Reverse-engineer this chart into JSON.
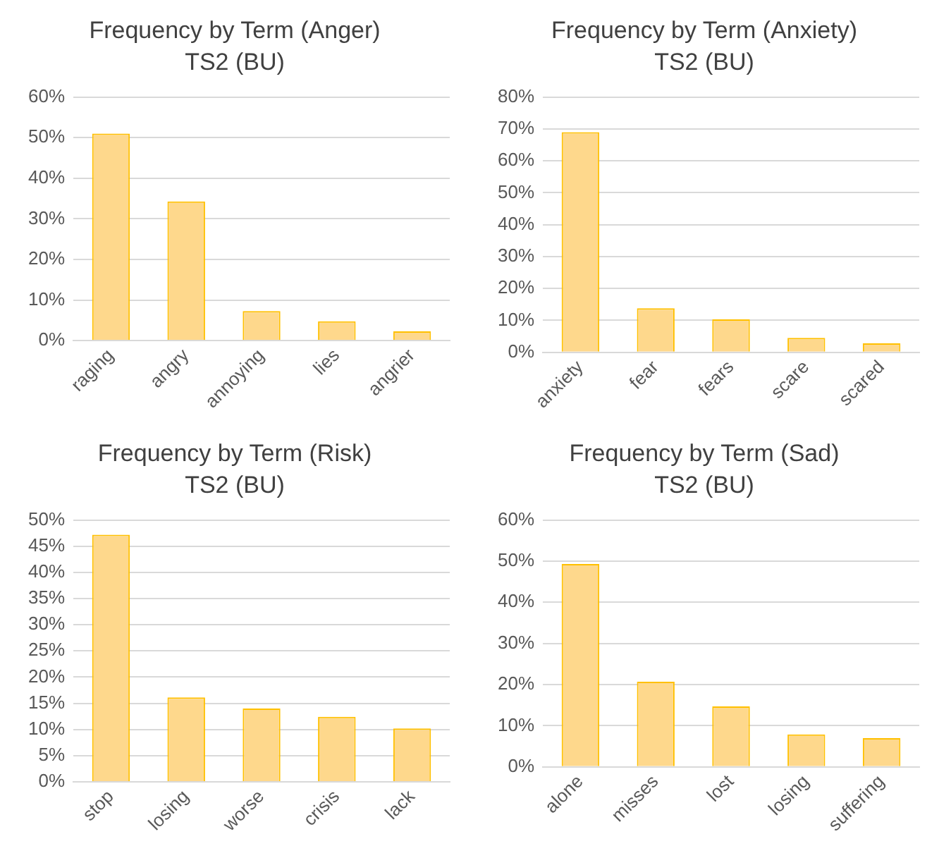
{
  "chart_data": [
    {
      "type": "bar",
      "title": "Frequency by Term (Anger)",
      "subtitle": "TS2 (BU)",
      "categories": [
        "raging",
        "angry",
        "annoying",
        "lies",
        "angrier"
      ],
      "values": [
        51,
        34.3,
        7.3,
        4.8,
        2.3
      ],
      "color": "#fed88c",
      "ylim": [
        0,
        60
      ],
      "yticks": [
        {
          "value": 0,
          "label": "0%"
        },
        {
          "value": 10,
          "label": "10%"
        },
        {
          "value": 20,
          "label": "20%"
        },
        {
          "value": 30,
          "label": "30%"
        },
        {
          "value": 40,
          "label": "40%"
        },
        {
          "value": 50,
          "label": "50%"
        },
        {
          "value": 60,
          "label": "60%"
        }
      ],
      "grid": "y",
      "legend": false
    },
    {
      "type": "bar",
      "title": "Frequency by Term (Anxiety)",
      "subtitle": "TS2 (BU)",
      "categories": [
        "anxiety",
        "fear",
        "fears",
        "scare",
        "scared"
      ],
      "values": [
        69,
        13.8,
        10.3,
        4.5,
        2.8
      ],
      "color": "#fed88c",
      "ylim": [
        0,
        80
      ],
      "yticks": [
        {
          "value": 0,
          "label": "0%"
        },
        {
          "value": 10,
          "label": "10%"
        },
        {
          "value": 20,
          "label": "20%"
        },
        {
          "value": 30,
          "label": "30%"
        },
        {
          "value": 40,
          "label": "40%"
        },
        {
          "value": 50,
          "label": "50%"
        },
        {
          "value": 60,
          "label": "60%"
        },
        {
          "value": 70,
          "label": "70%"
        },
        {
          "value": 80,
          "label": "80%"
        }
      ],
      "grid": "y",
      "legend": false
    },
    {
      "type": "bar",
      "title": "Frequency by Term (Risk)",
      "subtitle": "TS2 (BU)",
      "categories": [
        "stop",
        "losing",
        "worse",
        "crisis",
        "lack"
      ],
      "values": [
        47.2,
        16.1,
        14,
        12.4,
        10.2
      ],
      "color": "#fed88c",
      "ylim": [
        0,
        50
      ],
      "yticks": [
        {
          "value": 0,
          "label": "0%"
        },
        {
          "value": 5,
          "label": "5%"
        },
        {
          "value": 10,
          "label": "10%"
        },
        {
          "value": 15,
          "label": "15%"
        },
        {
          "value": 20,
          "label": "20%"
        },
        {
          "value": 25,
          "label": "25%"
        },
        {
          "value": 30,
          "label": "30%"
        },
        {
          "value": 35,
          "label": "35%"
        },
        {
          "value": 40,
          "label": "40%"
        },
        {
          "value": 45,
          "label": "45%"
        },
        {
          "value": 50,
          "label": "50%"
        }
      ],
      "grid": "y",
      "legend": false
    },
    {
      "type": "bar",
      "title": "Frequency by Term (Sad)",
      "subtitle": "TS2 (BU)",
      "categories": [
        "alone",
        "misses",
        "lost",
        "losing",
        "suffering"
      ],
      "values": [
        49.3,
        20.7,
        14.7,
        7.9,
        7
      ],
      "color": "#fed88c",
      "ylim": [
        0,
        60
      ],
      "yticks": [
        {
          "value": 0,
          "label": "0%"
        },
        {
          "value": 10,
          "label": "10%"
        },
        {
          "value": 20,
          "label": "20%"
        },
        {
          "value": 30,
          "label": "30%"
        },
        {
          "value": 40,
          "label": "40%"
        },
        {
          "value": 50,
          "label": "50%"
        },
        {
          "value": 60,
          "label": "60%"
        }
      ],
      "grid": "y",
      "legend": false
    }
  ]
}
